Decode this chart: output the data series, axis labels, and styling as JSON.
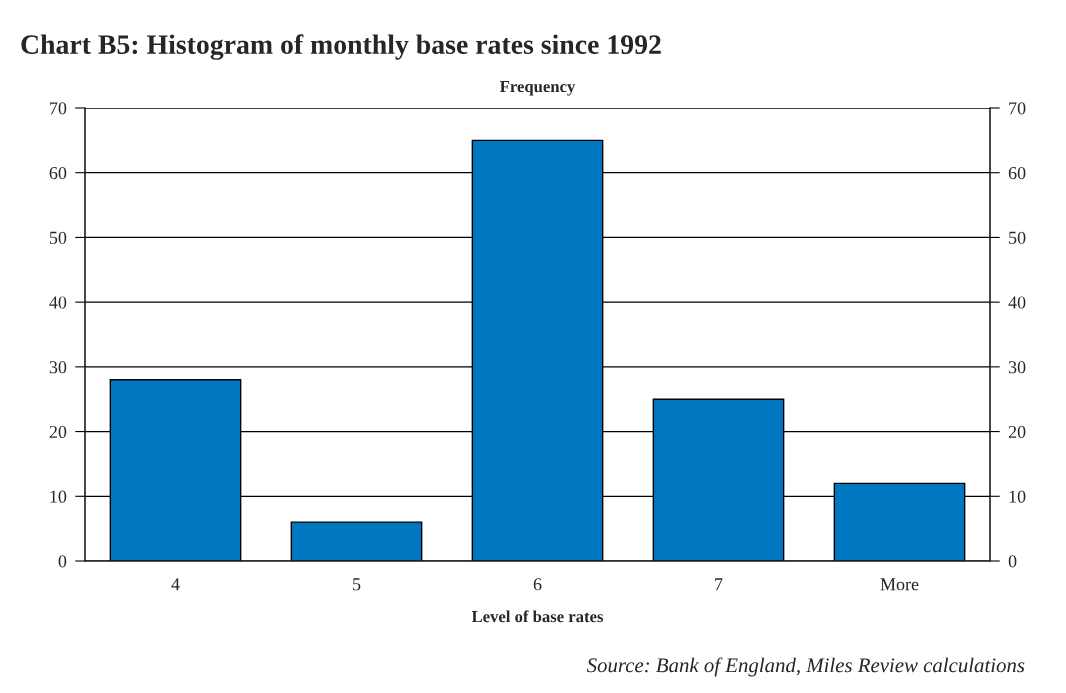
{
  "chart_data": {
    "type": "bar",
    "title": "Chart B5: Histogram of monthly base rates since 1992",
    "xlabel": "Level of base rates",
    "categories": [
      "4",
      "5",
      "6",
      "7",
      "More"
    ],
    "values": [
      28,
      6,
      65,
      25,
      12
    ],
    "color": "#0078c1",
    "ylim": [
      0,
      70
    ],
    "yticks": [
      0,
      10,
      20,
      30,
      40,
      50,
      60,
      70
    ],
    "y2lim": [
      0,
      70
    ],
    "y2ticks": [
      0,
      10,
      20,
      30,
      40,
      50,
      60,
      70
    ],
    "grid": "y",
    "annotations": [
      "Frequency",
      "Source: Bank of England, Miles Review calculations"
    ]
  }
}
